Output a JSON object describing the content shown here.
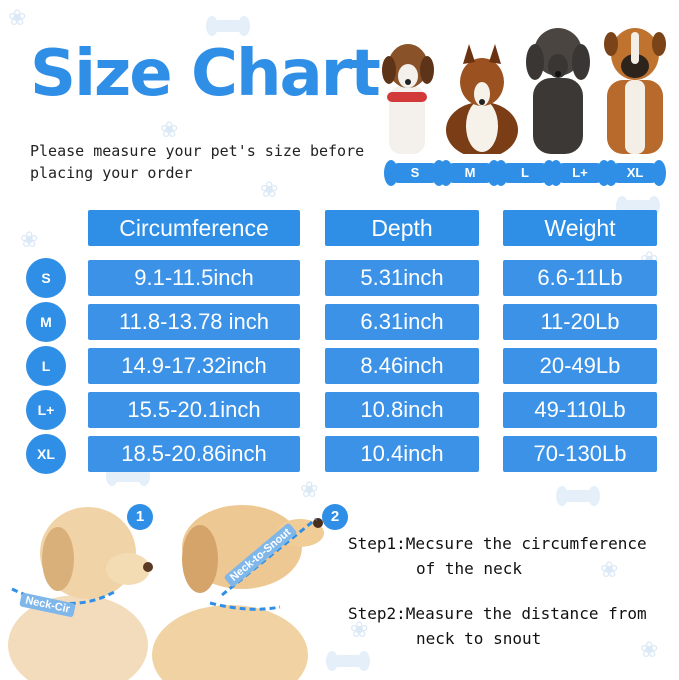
{
  "title": "Size Chart",
  "subtitle": "Please measure your pet's size before placing your order",
  "size_tags": [
    "S",
    "M",
    "L",
    "L+",
    "XL"
  ],
  "table": {
    "headers": [
      "Circumference",
      "Depth",
      "Weight"
    ],
    "rows": [
      {
        "size": "S",
        "circumference": "9.1-11.5inch",
        "depth": "5.31inch",
        "weight": "6.6-11Lb"
      },
      {
        "size": "M",
        "circumference": "11.8-13.78 inch",
        "depth": "6.31inch",
        "weight": "11-20Lb"
      },
      {
        "size": "L",
        "circumference": "14.9-17.32inch",
        "depth": "8.46inch",
        "weight": "20-49Lb"
      },
      {
        "size": "L+",
        "circumference": "15.5-20.1inch",
        "depth": "10.8inch",
        "weight": "49-110Lb"
      },
      {
        "size": "XL",
        "circumference": "18.5-20.86inch",
        "depth": "10.4inch",
        "weight": "70-130Lb"
      }
    ]
  },
  "steps": {
    "numbers": [
      "1",
      "2"
    ],
    "neck_label": "Neck-Cir",
    "snout_label": "Neck-to-Snout",
    "step1_label": "Step1:",
    "step1_line1": "Mecsure the circumference",
    "step1_line2": "of the neck",
    "step2_label": "Step2:",
    "step2_line1": "Measure the distance from",
    "step2_line2": "neck to snout"
  },
  "colors": {
    "accent": "#2f8fe6",
    "cell": "#3b92e6",
    "paw": "#dbe9f6"
  }
}
